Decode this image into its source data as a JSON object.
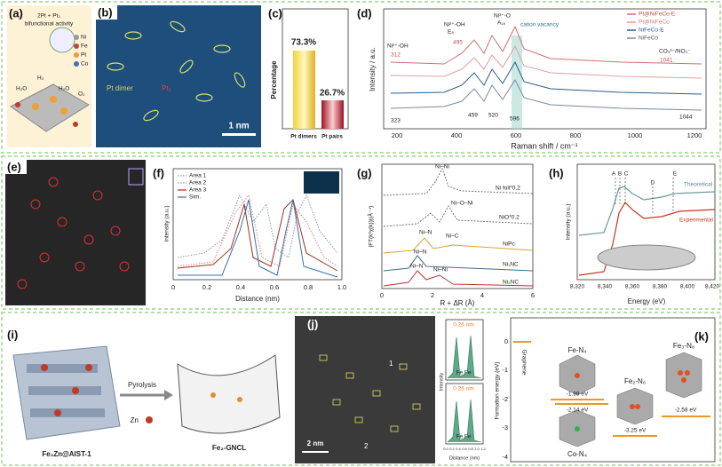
{
  "a": {
    "label": "(a)",
    "title": "2Pt + Pt₂",
    "subtitle": "bifunctional activity",
    "legend": [
      "Ni",
      "Fe",
      "Pt",
      "Co"
    ],
    "molecules": [
      "H₂O",
      "H₂",
      "H₂O",
      "O₂"
    ]
  },
  "b": {
    "label": "(b)",
    "annotations": [
      "Pt dimer",
      "Pt₂"
    ],
    "scale": "1 nm"
  },
  "c": {
    "label": "(c)",
    "ylabel": "Percentage",
    "categories": [
      "Pt dimers",
      "Pt pairs"
    ],
    "values": [
      "73.3%",
      "26.7%"
    ]
  },
  "d": {
    "label": "(d)",
    "xlabel": "Raman shift / cm⁻¹",
    "ylabel": "Intensity / a.u.",
    "xticks": [
      "200",
      "400",
      "600",
      "800",
      "1000",
      "1200"
    ],
    "legend": [
      "Pt@NiFeCo-E",
      "Pt@NiFeCo",
      "NiFeCo-E",
      "NiFeCo"
    ],
    "annotations": [
      "Ni²⁺-OH",
      "E₉",
      "Ni³⁺-O",
      "A₁₉",
      "cation vacancy",
      "CO₃²⁻/NO₃⁻",
      "323",
      "459",
      "520",
      "596",
      "1044",
      "495",
      "312",
      "1041",
      "Ni²⁺-OH"
    ]
  },
  "e": {
    "label": "(e)"
  },
  "f": {
    "label": "(f)",
    "xlabel": "Distance (nm)",
    "ylabel": "Intensity (a.u.)",
    "xticks": [
      "0",
      "0.2",
      "0.4",
      "0.6",
      "0.8",
      "1.0"
    ],
    "legend": [
      "Area 1",
      "Area 2",
      "Area 3",
      "Sim."
    ]
  },
  "g": {
    "label": "(g)",
    "xlabel": "R + ΔR (Å)",
    "ylabel": "|FT(k³χ(k))|(Å⁻⁴)",
    "xticks": [
      "0",
      "2",
      "4",
      "6"
    ],
    "samples": [
      "Ni foil*0.2",
      "NiO*0.2",
      "NiPc",
      "Ni₁NC",
      "Ni₂NC"
    ],
    "annotations": [
      "Ni–Ni",
      "Ni–O–Ni",
      "Ni–N",
      "Ni–C",
      "Ni–N",
      "Ni–N",
      "Ni–Ni"
    ]
  },
  "h": {
    "label": "(h)",
    "xlabel": "Energy (eV)",
    "ylabel": "Intensity (a.u.)",
    "xticks": [
      "8,320",
      "8,340",
      "8,360",
      "8,380",
      "8,400",
      "8,420"
    ],
    "peaks": [
      "A",
      "B",
      "C",
      "D",
      "E"
    ],
    "legend": [
      "Theoretical",
      "Experimental"
    ]
  },
  "i": {
    "label": "(i)",
    "texts": [
      "Pyrolysis",
      "Zn",
      "Fe₂Zn@AIST-1",
      "Fe₂-GNCL"
    ]
  },
  "j": {
    "label": "(j)",
    "scale": "2 nm",
    "regions": [
      "1",
      "2"
    ],
    "inset": {
      "spacing": [
        "0.26 nm",
        "0.26 nm"
      ],
      "atoms": [
        "Fe  Fe",
        "Fe  Fe"
      ],
      "ylabel": "Intensity",
      "xlabel": "Distance (nm)",
      "xticks": [
        "0.0",
        "0.2",
        "0.4",
        "0.6",
        "0.8",
        "1.0",
        "1.2"
      ]
    }
  },
  "k": {
    "label": "(k)",
    "ylabel": "Formation energy (eV)",
    "yticks": [
      "0",
      "-1",
      "-2",
      "-3",
      "-4"
    ],
    "reference": "Graphene",
    "structures": [
      "Fe-N₄",
      "Co-N₄",
      "Fe₂-N₆",
      "Fe₃-N₈"
    ],
    "energies": [
      "-1.99 eV",
      "-2.14 eV",
      "-3.25 eV",
      "-2.58 eV"
    ]
  }
}
